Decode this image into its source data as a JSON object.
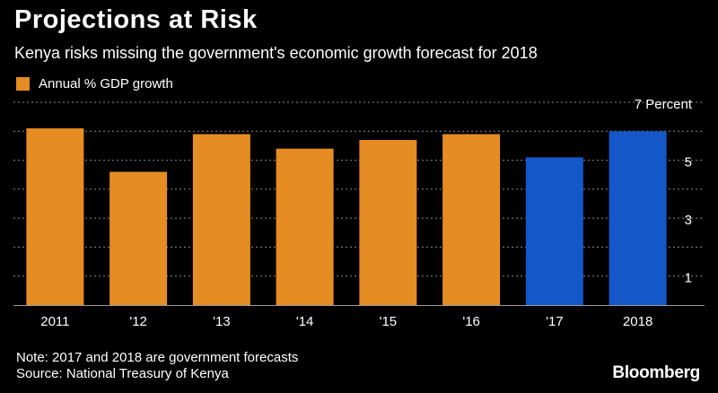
{
  "header": {
    "title": "Projections at Risk",
    "subtitle": "Kenya risks missing the government's economic growth forecast for 2018"
  },
  "footer": {
    "note": "Note: 2017 and 2018 are government forecasts",
    "source": "Source: National Treasury of Kenya",
    "brand": "Bloomberg"
  },
  "colors": {
    "actual": "#e58c22",
    "forecast": "#1457c9",
    "grid": "#8a8a8a",
    "axis": "#9a9a9a"
  },
  "chart_data": {
    "type": "bar",
    "title": "Projections at Risk",
    "subtitle": "Kenya risks missing the government's economic growth forecast for 2018",
    "legend": [
      {
        "name": "Annual % GDP growth",
        "color": "#e58c22"
      }
    ],
    "legend_position": "top-left",
    "categories": [
      "2011",
      "'12",
      "'13",
      "'14",
      "'15",
      "'16",
      "'17",
      "2018"
    ],
    "series": [
      {
        "name": "Annual % GDP growth",
        "values": [
          6.1,
          4.6,
          5.9,
          5.4,
          5.7,
          5.9,
          5.1,
          6.0
        ],
        "forecast": [
          false,
          false,
          false,
          false,
          false,
          false,
          true,
          true
        ]
      }
    ],
    "ylim": [
      0,
      7
    ],
    "yticks": [
      1,
      3,
      5,
      7
    ],
    "ytick_labels": [
      "1",
      "3",
      "5",
      "7 Percent"
    ],
    "grid": true,
    "y_axis_side": "right"
  }
}
